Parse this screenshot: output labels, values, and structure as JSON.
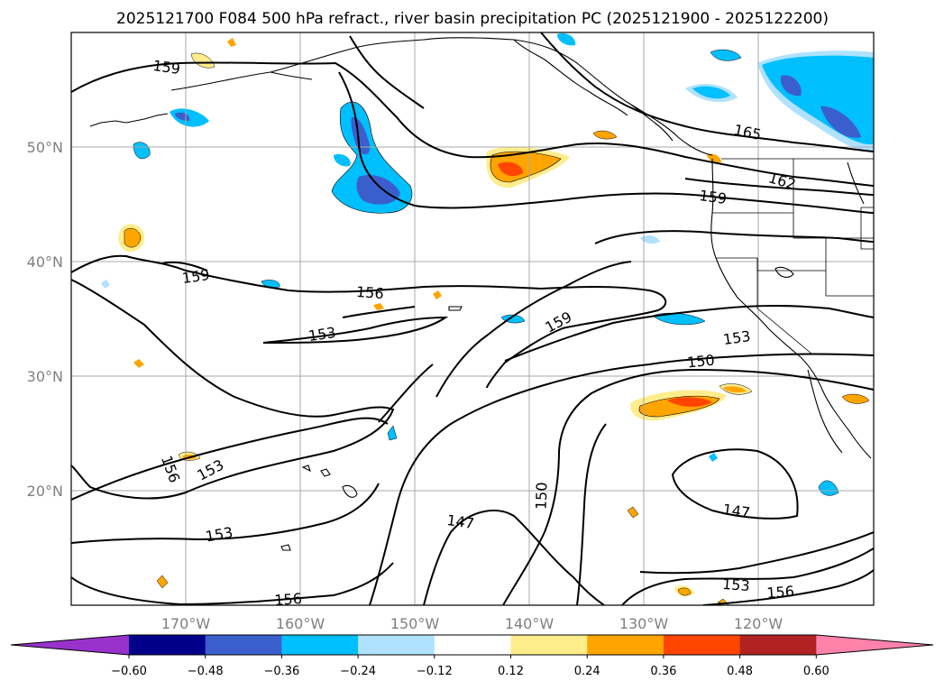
{
  "title": "2025121700 F084 500 hPa refract., river basin precipitation PC (2025121900 - 2025122200)",
  "lat_labels": [
    "50°N",
    "40°N",
    "30°N",
    "20°N"
  ],
  "lon_labels": [
    "170°W",
    "160°W",
    "150°W",
    "140°W",
    "130°W",
    "120°W"
  ],
  "colorbar": {
    "ticks": [
      "−0.60",
      "−0.48",
      "−0.36",
      "−0.24",
      "−0.12",
      "0.12",
      "0.24",
      "0.36",
      "0.48",
      "0.60"
    ],
    "colors": [
      "#9932cc",
      "#00008b",
      "#3a5fcd",
      "#00bfff",
      "#b0e2ff",
      "#ffffff",
      "#ffec8b",
      "#ffa500",
      "#ff4500",
      "#b22222",
      "#ff82ab"
    ]
  },
  "contour_labels": [
    "159",
    "165",
    "162",
    "159",
    "159",
    "156",
    "153",
    "159",
    "153",
    "150",
    "156",
    "153",
    "153",
    "150",
    "147",
    "147",
    "153",
    "156",
    "156"
  ]
}
